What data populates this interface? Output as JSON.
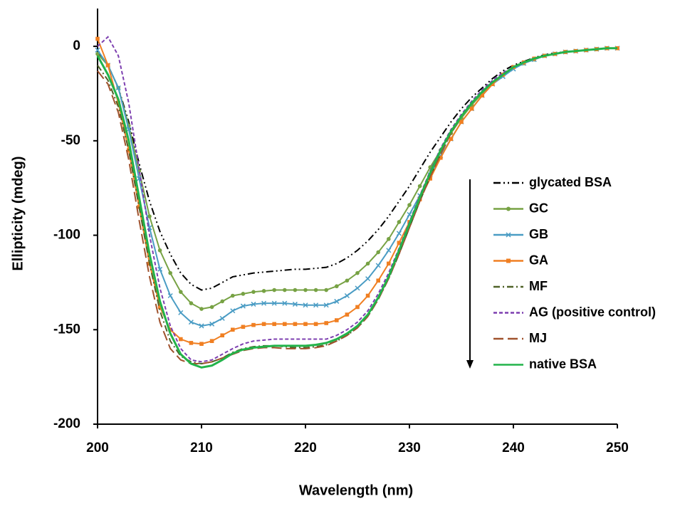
{
  "chart_data": {
    "type": "line",
    "x_label": "Wavelength (nm)",
    "y_label": "Ellipticity (mdeg)",
    "x": [
      200,
      201,
      202,
      203,
      204,
      205,
      206,
      207,
      208,
      209,
      210,
      211,
      212,
      213,
      214,
      215,
      216,
      217,
      218,
      219,
      220,
      221,
      222,
      223,
      224,
      225,
      226,
      227,
      228,
      229,
      230,
      231,
      232,
      233,
      234,
      235,
      236,
      237,
      238,
      239,
      240,
      241,
      242,
      243,
      244,
      245,
      246,
      247,
      248,
      249,
      250
    ],
    "xlim": [
      200,
      250
    ],
    "xticks": [
      200,
      210,
      220,
      230,
      240,
      250
    ],
    "ylim": [
      -200,
      20
    ],
    "yticks": [
      -200,
      -150,
      -100,
      -50,
      0
    ],
    "grid": false,
    "legend": "right",
    "series": [
      {
        "name": "glycated BSA",
        "color": "#000000",
        "dash": "dash-dot-dot",
        "marker": "none",
        "values": [
          -3,
          -10,
          -22,
          -40,
          -62,
          -82,
          -98,
          -110,
          -120,
          -126,
          -129,
          -128,
          -125,
          -122,
          -121,
          -120,
          -119.5,
          -119,
          -118.5,
          -118,
          -118,
          -117.5,
          -117,
          -115,
          -112,
          -108,
          -103,
          -97,
          -90,
          -82,
          -74,
          -65,
          -56,
          -48,
          -40,
          -33,
          -27,
          -22,
          -17,
          -13,
          -10,
          -8,
          -6,
          -4.5,
          -3.5,
          -3,
          -2.5,
          -2,
          -1.5,
          -1,
          -1
        ]
      },
      {
        "name": "GC",
        "color": "#77a244",
        "dash": "solid",
        "marker": "circle",
        "values": [
          -4,
          -10,
          -22,
          -42,
          -66,
          -90,
          -108,
          -120,
          -130,
          -136,
          -139,
          -138,
          -135,
          -132,
          -131,
          -130,
          -129.5,
          -129,
          -129,
          -129,
          -129,
          -129,
          -129,
          -127,
          -124,
          -120,
          -115,
          -109,
          -102,
          -93,
          -84,
          -74,
          -64,
          -55,
          -46,
          -38,
          -31,
          -25,
          -19,
          -15,
          -11,
          -9,
          -7,
          -5,
          -4,
          -3,
          -2.5,
          -2,
          -1.5,
          -1,
          -1
        ]
      },
      {
        "name": "GB",
        "color": "#4a9cc4",
        "dash": "solid",
        "marker": "x",
        "values": [
          -2,
          -10,
          -22,
          -44,
          -70,
          -96,
          -118,
          -132,
          -141,
          -146,
          -148,
          -147,
          -144,
          -140,
          -137.5,
          -136.5,
          -136,
          -136,
          -136,
          -136.5,
          -137,
          -137,
          -137,
          -135,
          -132,
          -128,
          -123,
          -116,
          -108,
          -99,
          -89,
          -79,
          -68,
          -58,
          -49,
          -40,
          -33,
          -26,
          -20,
          -16,
          -12,
          -9,
          -7,
          -5,
          -4,
          -3,
          -2.5,
          -2,
          -1.5,
          -1,
          -1
        ]
      },
      {
        "name": "GA",
        "color": "#f07f22",
        "dash": "solid",
        "marker": "square",
        "values": [
          4,
          -10,
          -30,
          -55,
          -85,
          -115,
          -138,
          -150,
          -155,
          -157,
          -157.5,
          -156,
          -153,
          -150,
          -148.5,
          -147.5,
          -147,
          -147,
          -147,
          -147,
          -147,
          -147,
          -146.5,
          -145,
          -142,
          -138,
          -132,
          -124,
          -115,
          -104,
          -93,
          -81,
          -70,
          -59,
          -49,
          -40,
          -33,
          -26,
          -20,
          -15,
          -11,
          -8.5,
          -6.5,
          -5,
          -4,
          -3,
          -2.5,
          -2,
          -1.5,
          -1,
          -1
        ]
      },
      {
        "name": "MF",
        "color": "#4f6228",
        "dash": "dash-dot",
        "marker": "none",
        "values": [
          -10,
          -18,
          -32,
          -55,
          -85,
          -115,
          -140,
          -156,
          -164,
          -167,
          -168,
          -167,
          -165,
          -162,
          -160,
          -159,
          -158.5,
          -158.5,
          -159,
          -159.5,
          -159.5,
          -159,
          -158,
          -156,
          -153,
          -149,
          -143,
          -134,
          -123,
          -110,
          -96,
          -82,
          -69,
          -57,
          -46,
          -37,
          -30,
          -24,
          -19,
          -15,
          -11,
          -8.5,
          -6.5,
          -5,
          -4,
          -3,
          -2.5,
          -2,
          -1.5,
          -1,
          -1
        ]
      },
      {
        "name": "AG (positive control)",
        "color": "#7d3fb0",
        "dash": "short-dash",
        "marker": "none",
        "values": [
          0,
          5,
          -5,
          -30,
          -65,
          -100,
          -128,
          -148,
          -160,
          -166,
          -167,
          -166,
          -163,
          -160,
          -157.5,
          -156,
          -155.5,
          -155,
          -155,
          -155,
          -155,
          -155,
          -155,
          -153,
          -150,
          -146,
          -140,
          -131,
          -120,
          -107,
          -93,
          -79,
          -66,
          -54,
          -44,
          -36,
          -29,
          -23,
          -18,
          -14,
          -11,
          -8.5,
          -6.5,
          -5,
          -4,
          -3,
          -2.5,
          -2,
          -1.5,
          -1,
          -1
        ]
      },
      {
        "name": "MJ",
        "color": "#a0522d",
        "dash": "long-dash",
        "marker": "none",
        "values": [
          -13,
          -20,
          -35,
          -60,
          -92,
          -122,
          -146,
          -160,
          -166,
          -168,
          -168,
          -167,
          -165,
          -163,
          -161,
          -160,
          -159.5,
          -159.5,
          -160,
          -160,
          -160,
          -159.5,
          -158.5,
          -156,
          -153,
          -149,
          -143,
          -134,
          -123,
          -110,
          -96,
          -82,
          -69,
          -57,
          -46,
          -37,
          -30,
          -24,
          -19,
          -15,
          -11,
          -8.5,
          -6.5,
          -5,
          -4,
          -3,
          -2.5,
          -2,
          -1.5,
          -1,
          -1
        ]
      },
      {
        "name": "native BSA",
        "color": "#22b34a",
        "dash": "solid",
        "marker": "none",
        "values": [
          -5,
          -15,
          -28,
          -50,
          -80,
          -110,
          -135,
          -152,
          -163,
          -168,
          -170,
          -169,
          -166,
          -162.5,
          -160.5,
          -159.5,
          -159,
          -158.5,
          -158.5,
          -158.5,
          -158.5,
          -158,
          -157,
          -155,
          -152,
          -148,
          -142,
          -133,
          -122,
          -108,
          -94,
          -80,
          -67,
          -55,
          -45,
          -37,
          -30,
          -24,
          -19,
          -15,
          -11,
          -8.5,
          -6.5,
          -5,
          -4,
          -3,
          -2.5,
          -2,
          -1.5,
          -1,
          -1
        ]
      }
    ]
  }
}
